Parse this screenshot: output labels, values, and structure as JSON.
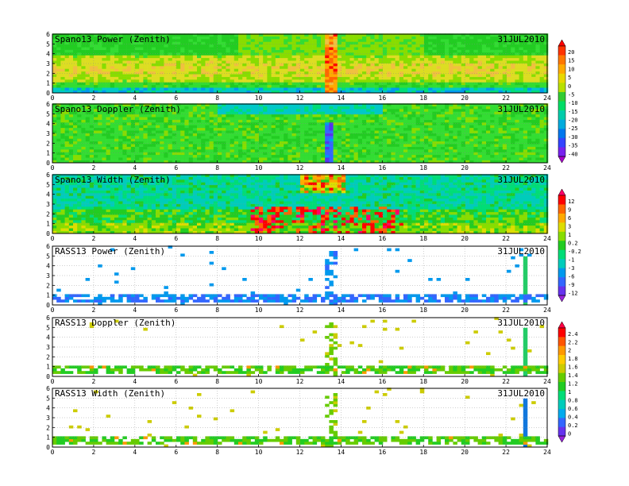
{
  "chart_data": [
    {
      "type": "heatmap",
      "title": "Spano13 Power (Zenith)",
      "date": "31JUL2010",
      "xlim": [
        0,
        24
      ],
      "ylim": [
        0,
        6
      ],
      "xticks": [
        "0",
        "2",
        "4",
        "6",
        "8",
        "10",
        "12",
        "14",
        "16",
        "18",
        "20",
        "22",
        "24"
      ],
      "yticks": [
        "0",
        "1",
        "2",
        "3",
        "4",
        "5",
        "6"
      ],
      "grid": true,
      "scale": "power",
      "description_values": "background level ~ -15 to -5; band 1.5-3.5 ~ 0 to 5; peak near 13.3 h"
    },
    {
      "type": "heatmap",
      "title": "Spano13 Doppler (Zenith)",
      "date": "31JUL2010",
      "xlim": [
        0,
        24
      ],
      "ylim": [
        0,
        6
      ],
      "xticks": [
        "0",
        "2",
        "4",
        "6",
        "8",
        "10",
        "12",
        "14",
        "16",
        "18",
        "20",
        "22",
        "24"
      ],
      "yticks": [
        "0",
        "1",
        "2",
        "3",
        "4",
        "5",
        "6"
      ],
      "grid": true,
      "scale": "power"
    },
    {
      "type": "heatmap",
      "title": "Spano13 Width (Zenith)",
      "date": "31JUL2010",
      "xlim": [
        0,
        24
      ],
      "ylim": [
        0,
        6
      ],
      "xticks": [
        "0",
        "2",
        "4",
        "6",
        "8",
        "10",
        "12",
        "14",
        "16",
        "18",
        "20",
        "22",
        "24"
      ],
      "yticks": [
        "0",
        "1",
        "2",
        "3",
        "4",
        "5",
        "6"
      ],
      "grid": true,
      "scale": "width"
    },
    {
      "type": "heatmap",
      "title": "RASS13 Power (Zenith)",
      "date": "31JUL2010",
      "xlim": [
        0,
        24
      ],
      "ylim": [
        0,
        6
      ],
      "xticks": [
        "0",
        "2",
        "4",
        "6",
        "8",
        "10",
        "12",
        "14",
        "16",
        "18",
        "20",
        "22",
        "24"
      ],
      "yticks": [
        "0",
        "1",
        "2",
        "3",
        "4",
        "5",
        "6"
      ],
      "grid": true,
      "scale": "width"
    },
    {
      "type": "heatmap",
      "title": "RASS13 Doppler (Zenith)",
      "date": "31JUL2010",
      "xlim": [
        0,
        24
      ],
      "ylim": [
        0,
        6
      ],
      "xticks": [
        "0",
        "2",
        "4",
        "6",
        "8",
        "10",
        "12",
        "14",
        "16",
        "18",
        "20",
        "22",
        "24"
      ],
      "yticks": [
        "0",
        "1",
        "2",
        "3",
        "4",
        "5",
        "6"
      ],
      "grid": true,
      "scale": "doppler"
    },
    {
      "type": "heatmap",
      "title": "RASS13 Width (Zenith)",
      "date": "31JUL2010",
      "xlim": [
        0,
        24
      ],
      "ylim": [
        0,
        6
      ],
      "xticks": [
        "0",
        "2",
        "4",
        "6",
        "8",
        "10",
        "12",
        "14",
        "16",
        "18",
        "20",
        "22",
        "24"
      ],
      "yticks": [
        "0",
        "1",
        "2",
        "3",
        "4",
        "5",
        "6"
      ],
      "grid": true,
      "scale": "doppler"
    }
  ],
  "colorbars": [
    {
      "name": "power",
      "labels": [
        "20",
        "15",
        "10",
        "5",
        "0",
        "-5",
        "-10",
        "-15",
        "-20",
        "-25",
        "-30",
        "-35",
        "-40"
      ],
      "colors": [
        "#ff0000",
        "#ff3300",
        "#ff7700",
        "#ffaa00",
        "#e8d800",
        "#b8e000",
        "#33cc33",
        "#00dd66",
        "#00ccaa",
        "#00aadd",
        "#0077ee",
        "#3344ff",
        "#7722ee",
        "#aa00cc"
      ]
    },
    {
      "name": "width",
      "labels": [
        "12",
        "9",
        "6",
        "3",
        "1",
        "0.2",
        "-0.2",
        "-1",
        "-3",
        "-6",
        "-9",
        "-12"
      ],
      "colors": [
        "#ff0066",
        "#ff0000",
        "#ff6600",
        "#ffaa00",
        "#dddd00",
        "#88dd00",
        "#22cc22",
        "#00dd77",
        "#00ccbb",
        "#0099ee",
        "#3366ff",
        "#6633ee",
        "#9922dd"
      ]
    },
    {
      "name": "doppler",
      "labels": [
        "2.4",
        "2.2",
        "2",
        "1.8",
        "1.6",
        "1.4",
        "1.2",
        "1",
        "0.8",
        "0.6",
        "0.4",
        "0.2",
        "0"
      ],
      "colors": [
        "#ff0044",
        "#ff0000",
        "#ff5500",
        "#ff9900",
        "#ffcc00",
        "#cccc00",
        "#66cc00",
        "#22cc22",
        "#00dd77",
        "#00ccbb",
        "#00aaee",
        "#3366ff",
        "#6633ee",
        "#9922dd"
      ]
    }
  ]
}
